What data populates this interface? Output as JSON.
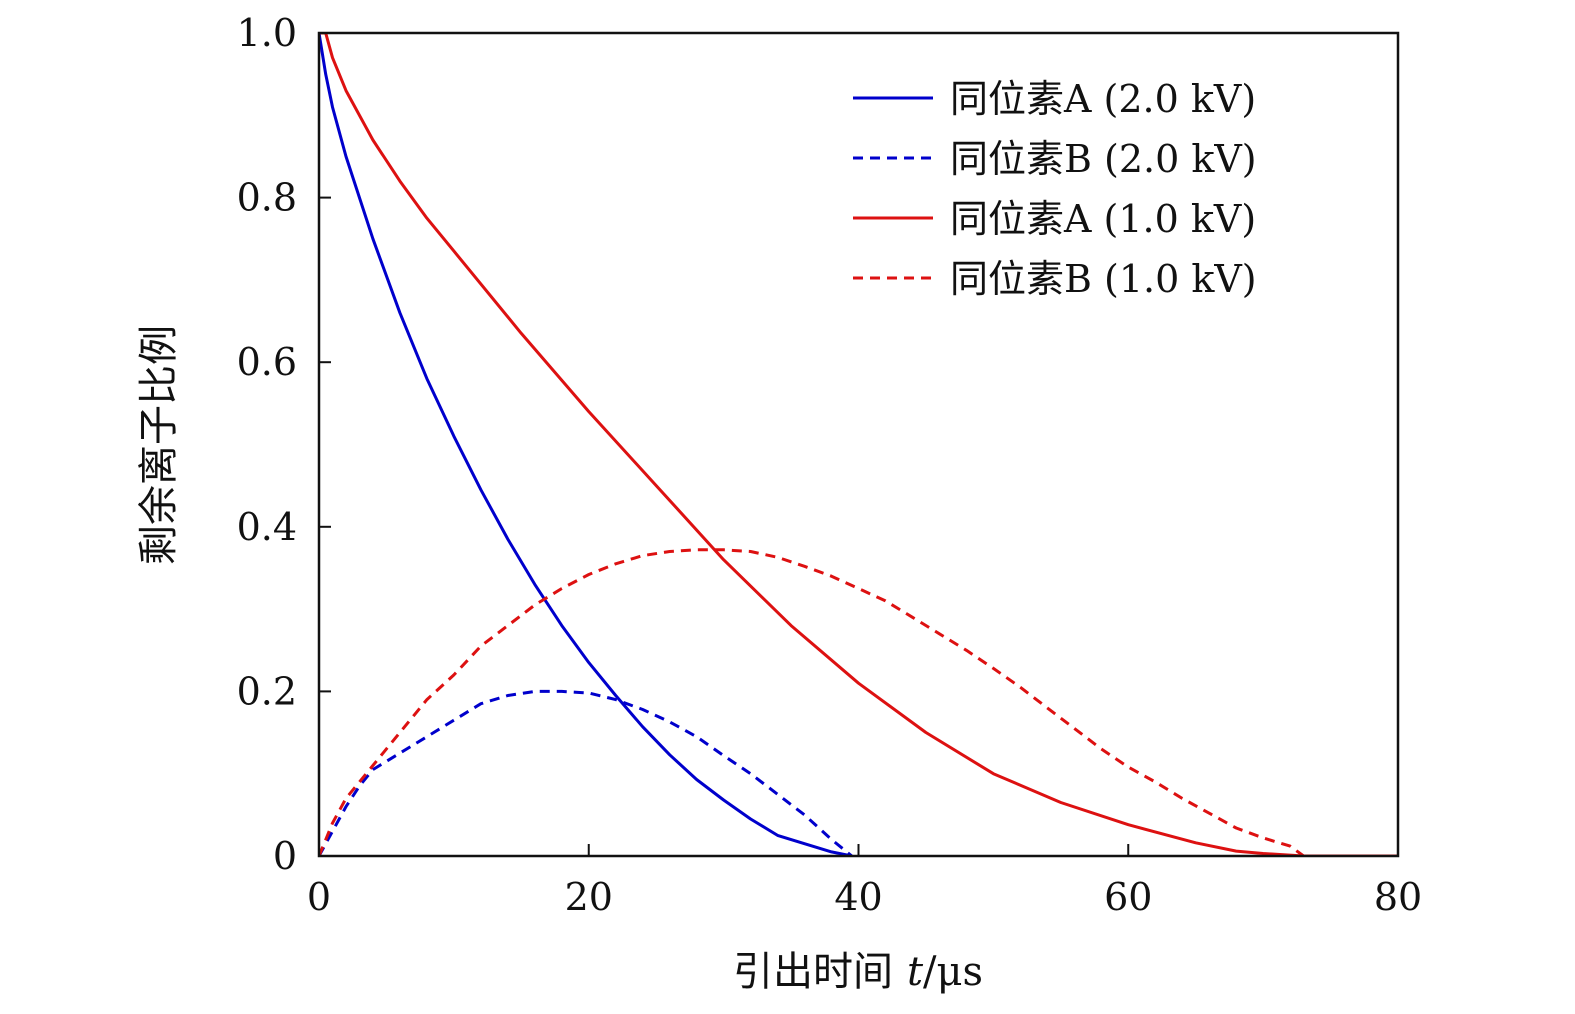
{
  "chart_data": {
    "type": "line",
    "title": "",
    "xlabel": "引出时间",
    "xlabel_var": "t",
    "xlabel_unit": "/μs",
    "ylabel": "剩余离子比例",
    "xlim": [
      0,
      80
    ],
    "ylim": [
      0,
      1.0
    ],
    "xticks": [
      0,
      20,
      40,
      60,
      80
    ],
    "xtick_labels": [
      "0",
      "20",
      "40",
      "60",
      "80"
    ],
    "yticks": [
      0,
      0.2,
      0.4,
      0.6,
      0.8,
      1.0
    ],
    "ytick_labels": [
      "0",
      "0.2",
      "0.4",
      "0.6",
      "0.8",
      "1.0"
    ],
    "grid": false,
    "legend_position": "top-right",
    "series": [
      {
        "name": "同位素A (2.0 kV)",
        "color": "#0000cc",
        "dash": "solid",
        "x": [
          0,
          0.5,
          1,
          2,
          4,
          6,
          8,
          10,
          12,
          14,
          16,
          18,
          20,
          22,
          24,
          26,
          28,
          30,
          32,
          34,
          36,
          38,
          39.5
        ],
        "y": [
          1.0,
          0.95,
          0.91,
          0.85,
          0.75,
          0.66,
          0.58,
          0.51,
          0.445,
          0.385,
          0.33,
          0.28,
          0.235,
          0.195,
          0.157,
          0.123,
          0.093,
          0.068,
          0.045,
          0.025,
          0.015,
          0.005,
          0.0
        ]
      },
      {
        "name": "同位素B (2.0 kV)",
        "color": "#0000cc",
        "dash": "dashed",
        "x": [
          0,
          1,
          2,
          3,
          4,
          6,
          8,
          10,
          12,
          14,
          16,
          18,
          20,
          22,
          24,
          26,
          28,
          30,
          32,
          34,
          36,
          38,
          39.5
        ],
        "y": [
          0.0,
          0.03,
          0.06,
          0.085,
          0.105,
          0.125,
          0.145,
          0.165,
          0.185,
          0.195,
          0.2,
          0.2,
          0.198,
          0.19,
          0.178,
          0.163,
          0.145,
          0.122,
          0.1,
          0.075,
          0.05,
          0.02,
          0.0
        ]
      },
      {
        "name": "同位素A (1.0 kV)",
        "color": "#dd1111",
        "dash": "solid",
        "x": [
          0,
          0.5,
          1,
          2,
          4,
          6,
          8,
          10,
          15,
          20,
          25,
          30,
          35,
          40,
          45,
          50,
          55,
          60,
          65,
          68,
          70,
          73,
          80
        ],
        "y": [
          1.0,
          1.0,
          0.97,
          0.93,
          0.87,
          0.82,
          0.775,
          0.735,
          0.635,
          0.54,
          0.45,
          0.36,
          0.28,
          0.21,
          0.15,
          0.1,
          0.065,
          0.038,
          0.016,
          0.006,
          0.003,
          0.0,
          0.0
        ]
      },
      {
        "name": "同位素B (1.0 kV)",
        "color": "#dd1111",
        "dash": "dashed",
        "x": [
          0,
          1,
          2,
          4,
          6,
          8,
          10,
          12,
          14,
          16,
          18,
          20,
          22,
          24,
          26,
          28,
          30,
          32,
          34,
          36,
          38,
          40,
          42,
          44,
          46,
          48,
          50,
          52,
          54,
          56,
          58,
          60,
          62,
          64,
          66,
          68,
          70,
          72,
          73
        ],
        "y": [
          0.0,
          0.04,
          0.07,
          0.11,
          0.15,
          0.19,
          0.22,
          0.255,
          0.28,
          0.305,
          0.325,
          0.342,
          0.355,
          0.365,
          0.37,
          0.372,
          0.372,
          0.37,
          0.363,
          0.352,
          0.34,
          0.325,
          0.31,
          0.29,
          0.27,
          0.25,
          0.228,
          0.205,
          0.18,
          0.155,
          0.13,
          0.108,
          0.09,
          0.07,
          0.052,
          0.034,
          0.022,
          0.012,
          0.0
        ]
      }
    ]
  }
}
